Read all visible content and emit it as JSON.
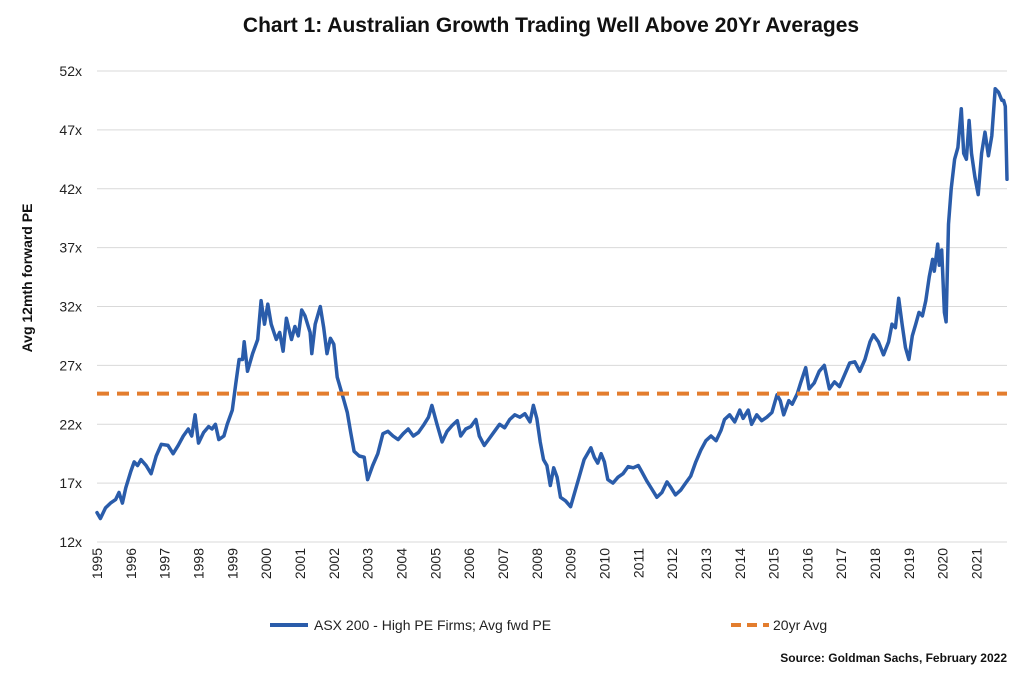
{
  "chart_data": {
    "type": "line",
    "title": "Chart 1: Australian Growth Trading Well Above 20Yr Averages",
    "ylabel": "Avg 12mth forward PE",
    "xlabel": "",
    "ylim": [
      12,
      52
    ],
    "xlim": [
      1995.0,
      2021.9
    ],
    "y_ticks": [
      12,
      17,
      22,
      27,
      32,
      37,
      42,
      47,
      52
    ],
    "y_tick_labels": [
      "12x",
      "17x",
      "22x",
      "27x",
      "32x",
      "37x",
      "42x",
      "47x",
      "52x"
    ],
    "x_ticks": [
      1995,
      1996,
      1997,
      1998,
      1999,
      2000,
      2001,
      2002,
      2003,
      2004,
      2005,
      2006,
      2007,
      2008,
      2009,
      2010,
      2011,
      2012,
      2013,
      2014,
      2015,
      2016,
      2017,
      2018,
      2019,
      2020,
      2021
    ],
    "x_tick_labels": [
      "1995",
      "1996",
      "1997",
      "1998",
      "1999",
      "2000",
      "2001",
      "2002",
      "2003",
      "2004",
      "2005",
      "2006",
      "2007",
      "2008",
      "2009",
      "2010",
      "2011",
      "2012",
      "2013",
      "2014",
      "2015",
      "2016",
      "2017",
      "2018",
      "2019",
      "2020",
      "2021"
    ],
    "grid": "horizontal",
    "legend_position": "bottom",
    "source": "Source: Goldman Sachs, February 2022",
    "series": [
      {
        "name": "ASX 200 - High PE Firms; Avg fwd PE",
        "style": "solid",
        "color": "#2a5caa",
        "points": [
          [
            1995.0,
            14.5
          ],
          [
            1995.1,
            14.0
          ],
          [
            1995.25,
            14.9
          ],
          [
            1995.4,
            15.3
          ],
          [
            1995.55,
            15.6
          ],
          [
            1995.65,
            16.2
          ],
          [
            1995.75,
            15.3
          ],
          [
            1995.85,
            16.6
          ],
          [
            1996.0,
            18.0
          ],
          [
            1996.1,
            18.8
          ],
          [
            1996.2,
            18.5
          ],
          [
            1996.3,
            19.0
          ],
          [
            1996.45,
            18.5
          ],
          [
            1996.6,
            17.8
          ],
          [
            1996.75,
            19.3
          ],
          [
            1996.9,
            20.3
          ],
          [
            1997.1,
            20.2
          ],
          [
            1997.25,
            19.5
          ],
          [
            1997.4,
            20.2
          ],
          [
            1997.55,
            21.0
          ],
          [
            1997.7,
            21.6
          ],
          [
            1997.8,
            21.0
          ],
          [
            1997.9,
            22.8
          ],
          [
            1998.0,
            20.4
          ],
          [
            1998.15,
            21.3
          ],
          [
            1998.3,
            21.8
          ],
          [
            1998.4,
            21.6
          ],
          [
            1998.5,
            22.0
          ],
          [
            1998.6,
            20.7
          ],
          [
            1998.75,
            21.0
          ],
          [
            1998.85,
            22.0
          ],
          [
            1999.0,
            23.2
          ],
          [
            1999.1,
            25.4
          ],
          [
            1999.2,
            27.5
          ],
          [
            1999.3,
            27.5
          ],
          [
            1999.35,
            29.0
          ],
          [
            1999.45,
            26.5
          ],
          [
            1999.6,
            28.0
          ],
          [
            1999.75,
            29.2
          ],
          [
            1999.85,
            32.5
          ],
          [
            1999.95,
            30.5
          ],
          [
            2000.05,
            32.2
          ],
          [
            2000.15,
            30.5
          ],
          [
            2000.3,
            29.2
          ],
          [
            2000.4,
            29.8
          ],
          [
            2000.5,
            28.2
          ],
          [
            2000.6,
            31.0
          ],
          [
            2000.75,
            29.2
          ],
          [
            2000.85,
            30.3
          ],
          [
            2000.95,
            29.5
          ],
          [
            2001.05,
            31.7
          ],
          [
            2001.15,
            31.2
          ],
          [
            2001.3,
            29.8
          ],
          [
            2001.35,
            28.0
          ],
          [
            2001.45,
            30.5
          ],
          [
            2001.6,
            32.0
          ],
          [
            2001.7,
            30.2
          ],
          [
            2001.8,
            28.0
          ],
          [
            2001.9,
            29.3
          ],
          [
            2002.0,
            28.8
          ],
          [
            2002.1,
            26.0
          ],
          [
            2002.2,
            25.0
          ],
          [
            2002.3,
            24.0
          ],
          [
            2002.4,
            23.0
          ],
          [
            2002.5,
            21.3
          ],
          [
            2002.6,
            19.7
          ],
          [
            2002.75,
            19.3
          ],
          [
            2002.9,
            19.2
          ],
          [
            2003.0,
            17.3
          ],
          [
            2003.15,
            18.5
          ],
          [
            2003.3,
            19.5
          ],
          [
            2003.45,
            21.2
          ],
          [
            2003.6,
            21.4
          ],
          [
            2003.75,
            21.0
          ],
          [
            2003.9,
            20.7
          ],
          [
            2004.05,
            21.2
          ],
          [
            2004.2,
            21.6
          ],
          [
            2004.35,
            21.0
          ],
          [
            2004.5,
            21.3
          ],
          [
            2004.65,
            21.9
          ],
          [
            2004.8,
            22.6
          ],
          [
            2004.9,
            23.6
          ],
          [
            2005.05,
            22.0
          ],
          [
            2005.2,
            20.5
          ],
          [
            2005.35,
            21.4
          ],
          [
            2005.5,
            21.9
          ],
          [
            2005.65,
            22.3
          ],
          [
            2005.75,
            21.0
          ],
          [
            2005.9,
            21.6
          ],
          [
            2006.05,
            21.8
          ],
          [
            2006.2,
            22.4
          ],
          [
            2006.3,
            21.0
          ],
          [
            2006.45,
            20.2
          ],
          [
            2006.6,
            20.8
          ],
          [
            2006.75,
            21.4
          ],
          [
            2006.9,
            22.0
          ],
          [
            2007.05,
            21.7
          ],
          [
            2007.2,
            22.4
          ],
          [
            2007.35,
            22.8
          ],
          [
            2007.5,
            22.6
          ],
          [
            2007.65,
            22.9
          ],
          [
            2007.8,
            22.2
          ],
          [
            2007.9,
            23.6
          ],
          [
            2008.0,
            22.5
          ],
          [
            2008.1,
            20.5
          ],
          [
            2008.2,
            19.0
          ],
          [
            2008.3,
            18.5
          ],
          [
            2008.4,
            16.8
          ],
          [
            2008.5,
            18.3
          ],
          [
            2008.6,
            17.5
          ],
          [
            2008.7,
            15.8
          ],
          [
            2008.85,
            15.5
          ],
          [
            2009.0,
            15.0
          ],
          [
            2009.1,
            16.0
          ],
          [
            2009.25,
            17.5
          ],
          [
            2009.4,
            19.0
          ],
          [
            2009.5,
            19.5
          ],
          [
            2009.6,
            20.0
          ],
          [
            2009.7,
            19.2
          ],
          [
            2009.8,
            18.7
          ],
          [
            2009.9,
            19.5
          ],
          [
            2010.0,
            18.8
          ],
          [
            2010.1,
            17.3
          ],
          [
            2010.25,
            17.0
          ],
          [
            2010.4,
            17.5
          ],
          [
            2010.55,
            17.8
          ],
          [
            2010.7,
            18.4
          ],
          [
            2010.85,
            18.3
          ],
          [
            2011.0,
            18.5
          ],
          [
            2011.1,
            18.0
          ],
          [
            2011.25,
            17.2
          ],
          [
            2011.4,
            16.5
          ],
          [
            2011.55,
            15.8
          ],
          [
            2011.7,
            16.2
          ],
          [
            2011.85,
            17.1
          ],
          [
            2011.95,
            16.7
          ],
          [
            2012.1,
            16.0
          ],
          [
            2012.25,
            16.4
          ],
          [
            2012.4,
            17.0
          ],
          [
            2012.55,
            17.6
          ],
          [
            2012.7,
            18.8
          ],
          [
            2012.85,
            19.8
          ],
          [
            2013.0,
            20.6
          ],
          [
            2013.15,
            21.0
          ],
          [
            2013.3,
            20.6
          ],
          [
            2013.45,
            21.5
          ],
          [
            2013.55,
            22.4
          ],
          [
            2013.7,
            22.8
          ],
          [
            2013.85,
            22.2
          ],
          [
            2014.0,
            23.2
          ],
          [
            2014.1,
            22.5
          ],
          [
            2014.25,
            23.2
          ],
          [
            2014.35,
            22.0
          ],
          [
            2014.5,
            22.8
          ],
          [
            2014.65,
            22.3
          ],
          [
            2014.8,
            22.6
          ],
          [
            2014.95,
            23.0
          ],
          [
            2015.1,
            24.5
          ],
          [
            2015.2,
            24.0
          ],
          [
            2015.3,
            22.8
          ],
          [
            2015.45,
            24.0
          ],
          [
            2015.55,
            23.7
          ],
          [
            2015.7,
            24.6
          ],
          [
            2015.8,
            25.5
          ],
          [
            2015.95,
            26.8
          ],
          [
            2016.05,
            25.0
          ],
          [
            2016.2,
            25.5
          ],
          [
            2016.35,
            26.5
          ],
          [
            2016.5,
            27.0
          ],
          [
            2016.65,
            25.0
          ],
          [
            2016.8,
            25.6
          ],
          [
            2016.95,
            25.2
          ],
          [
            2017.1,
            26.2
          ],
          [
            2017.25,
            27.2
          ],
          [
            2017.4,
            27.3
          ],
          [
            2017.55,
            26.5
          ],
          [
            2017.7,
            27.5
          ],
          [
            2017.85,
            29.0
          ],
          [
            2017.95,
            29.6
          ],
          [
            2018.1,
            29.0
          ],
          [
            2018.25,
            27.9
          ],
          [
            2018.4,
            29.0
          ],
          [
            2018.5,
            30.5
          ],
          [
            2018.6,
            30.2
          ],
          [
            2018.7,
            32.7
          ],
          [
            2018.8,
            30.5
          ],
          [
            2018.9,
            28.5
          ],
          [
            2019.0,
            27.5
          ],
          [
            2019.1,
            29.5
          ],
          [
            2019.2,
            30.5
          ],
          [
            2019.3,
            31.5
          ],
          [
            2019.4,
            31.2
          ],
          [
            2019.5,
            32.5
          ],
          [
            2019.6,
            34.5
          ],
          [
            2019.7,
            36.0
          ],
          [
            2019.75,
            35.0
          ],
          [
            2019.85,
            37.3
          ],
          [
            2019.9,
            35.5
          ],
          [
            2019.97,
            36.8
          ],
          [
            2020.05,
            31.5
          ],
          [
            2020.1,
            30.7
          ],
          [
            2020.17,
            39.0
          ],
          [
            2020.25,
            42.0
          ],
          [
            2020.35,
            44.5
          ],
          [
            2020.45,
            45.5
          ],
          [
            2020.55,
            48.8
          ],
          [
            2020.62,
            45.0
          ],
          [
            2020.7,
            44.5
          ],
          [
            2020.78,
            47.8
          ],
          [
            2020.85,
            45.0
          ],
          [
            2020.95,
            43.0
          ],
          [
            2021.05,
            41.5
          ],
          [
            2021.15,
            45.0
          ],
          [
            2021.25,
            46.8
          ],
          [
            2021.35,
            44.8
          ],
          [
            2021.45,
            46.5
          ],
          [
            2021.55,
            50.5
          ],
          [
            2021.65,
            50.2
          ],
          [
            2021.75,
            49.5
          ],
          [
            2021.8,
            49.5
          ],
          [
            2021.85,
            49.0
          ],
          [
            2021.9,
            42.8
          ]
        ]
      },
      {
        "name": "20yr Avg",
        "style": "dashed",
        "color": "#e37d2e",
        "points": [
          [
            1995.0,
            24.6
          ],
          [
            2021.9,
            24.6
          ]
        ]
      }
    ]
  }
}
